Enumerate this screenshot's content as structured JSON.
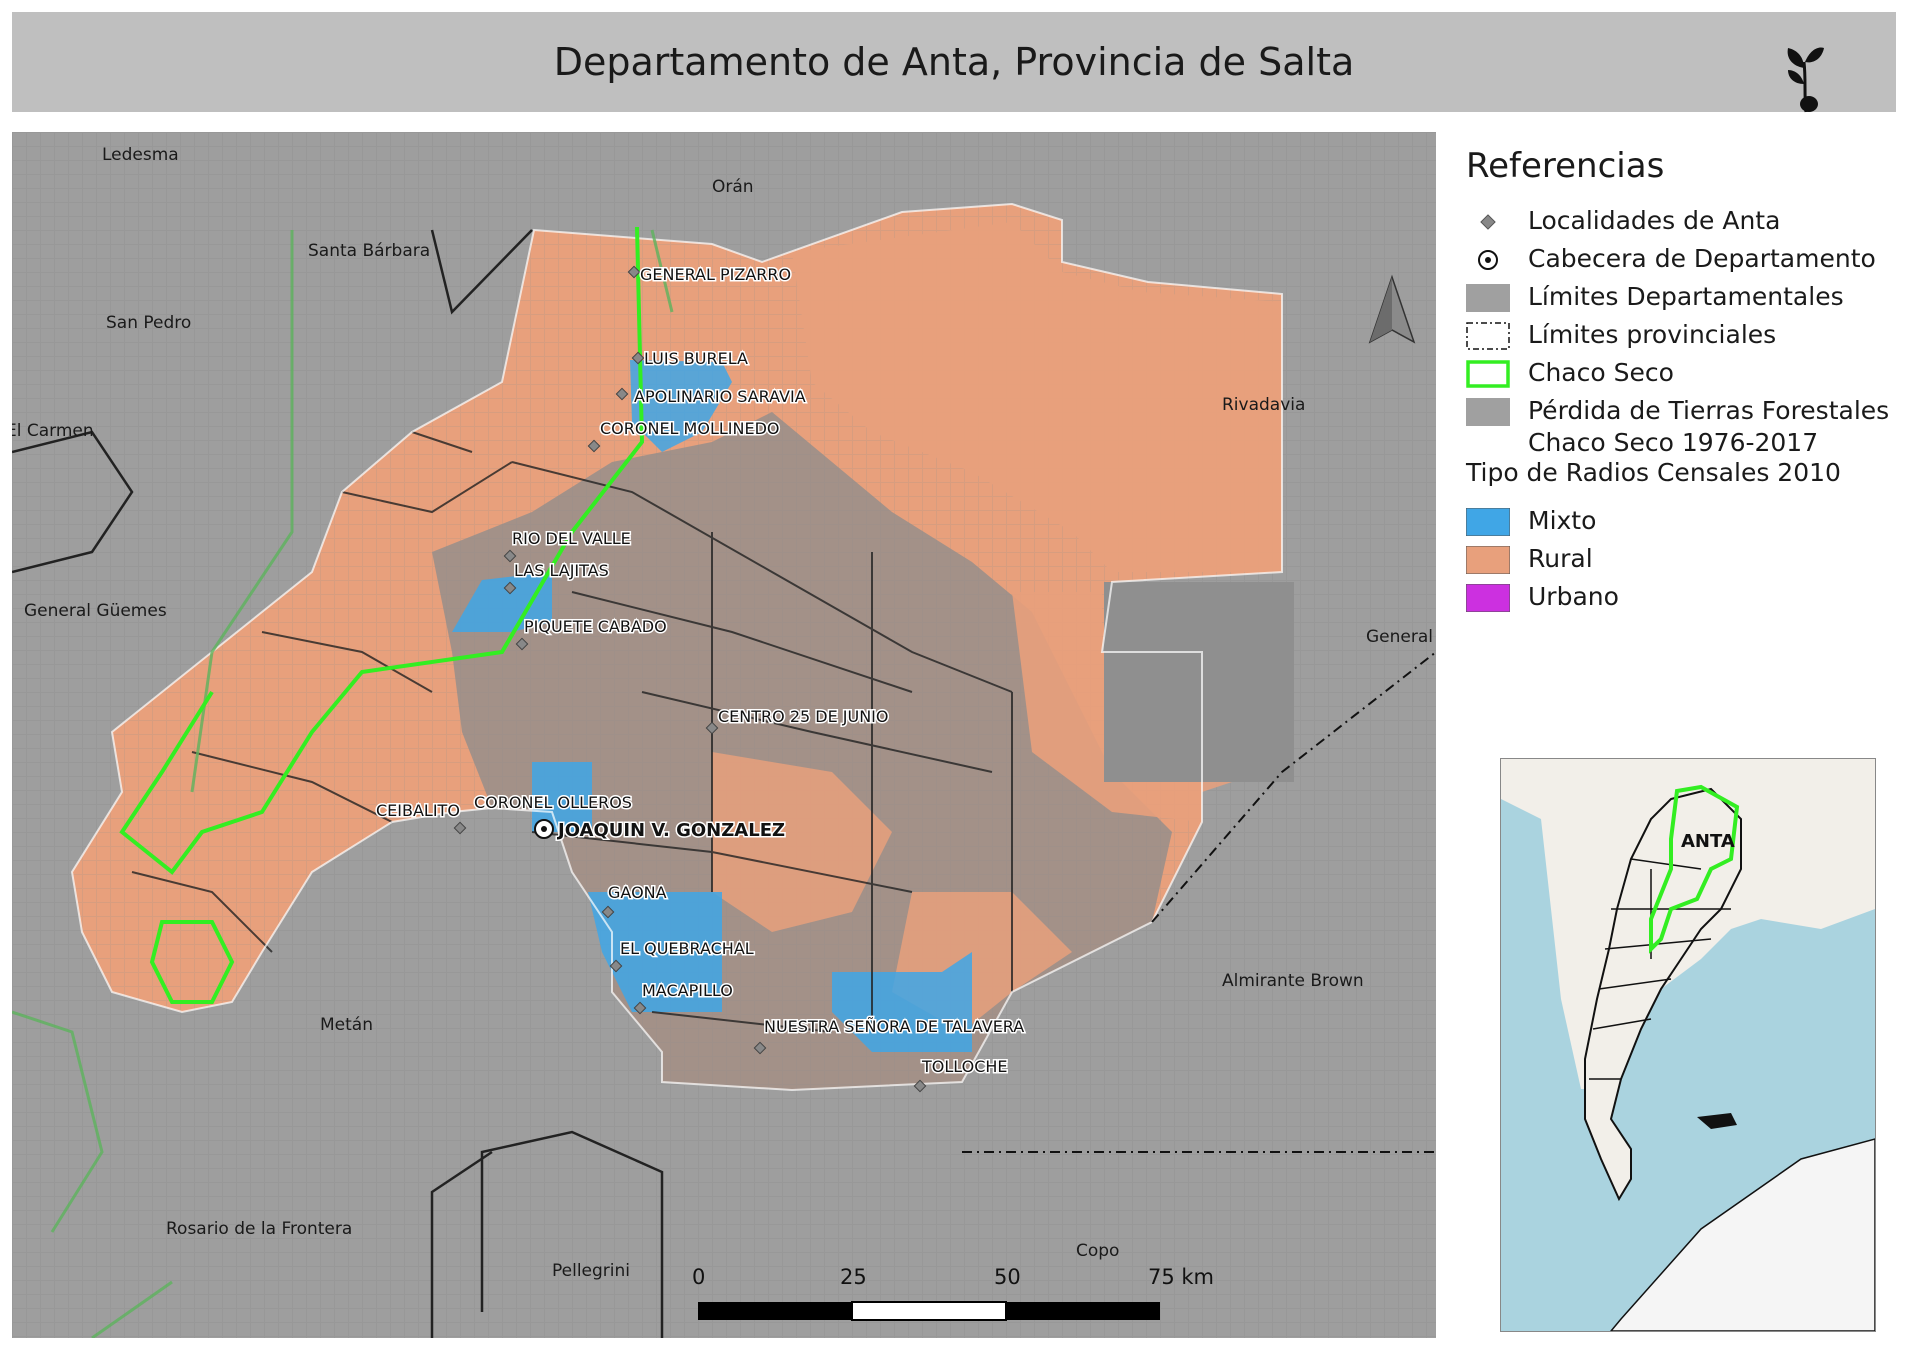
{
  "title": "Departamento de Anta, Provincia de Salta",
  "legend": {
    "title": "Referencias",
    "items": [
      {
        "label": "Localidades de Anta",
        "symbol": "diamond-icon"
      },
      {
        "label": "Cabecera de Departamento",
        "symbol": "capital-dot-icon"
      },
      {
        "label": "Límites Departamentales",
        "symbol": "gray-box"
      },
      {
        "label": "Límites provinciales",
        "symbol": "dashed-box"
      },
      {
        "label": "Chaco Seco",
        "symbol": "green-outline-box"
      },
      {
        "label": "Pérdida de Tierras Forestales",
        "label2": "Chaco Seco 1976-2017",
        "symbol": "gray-box"
      }
    ],
    "subtitle": "Tipo de Radios Censales 2010",
    "census_types": [
      {
        "label": "Mixto",
        "color": "#40a6e6"
      },
      {
        "label": "Rural",
        "color": "#e8a07c"
      },
      {
        "label": "Urbano",
        "color": "#cc30e0"
      }
    ]
  },
  "colors": {
    "rural": "#e8a07c",
    "mixto": "#40a6e6",
    "urbano": "#cc30e0",
    "chaco_seco": "#33ee22",
    "background": "#9c9c9c",
    "forest_loss": "#8a8a8a"
  },
  "map": {
    "places": {
      "ledesma": "Ledesma",
      "oran": "Orán",
      "santa_barbara": "Santa Bárbara",
      "san_pedro": "San Pedro",
      "el_carmen": "El Carmen",
      "general_guemes": "General Güemes",
      "rivadavia": "Rivadavia",
      "general_g": "General G",
      "almirante_brown": "Almirante Brown",
      "metan": "Metán",
      "rosario": "Rosario de la Frontera",
      "pellegrini": "Pellegrini",
      "copo": "Copo"
    },
    "localities": [
      "GENERAL PIZARRO",
      "LUIS BURELA",
      "APOLINARIO SARAVIA",
      "CORONEL MOLLINEDO",
      "RIO DEL VALLE",
      "LAS LAJITAS",
      "PIQUETE CABADO",
      "CENTRO 25 DE JUNIO",
      "CEIBALITO",
      "CORONEL OLLEROS",
      "GAONA",
      "EL QUEBRACHAL",
      "MACAPILLO",
      "NUESTRA SEÑORA DE TALAVERA",
      "TOLLOCHE"
    ],
    "capital": "JOAQUIN V. GONZALEZ",
    "north_arrow": "north-arrow-icon",
    "scale": {
      "ticks": [
        "0",
        "25",
        "50",
        "75 km"
      ]
    }
  },
  "inset": {
    "label": "ANTA"
  }
}
